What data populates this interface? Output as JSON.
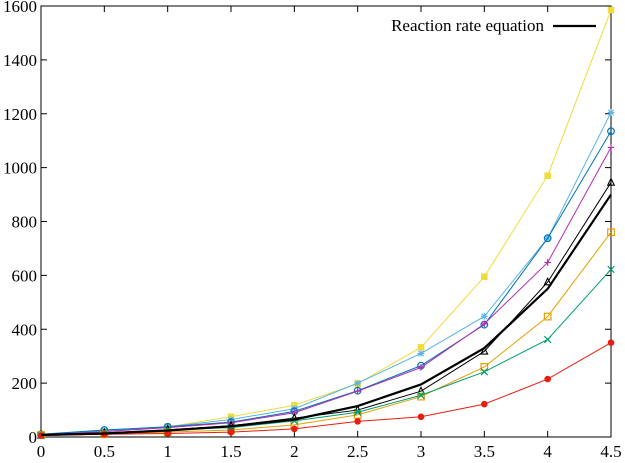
{
  "chart_data": {
    "type": "line",
    "title": "",
    "xlabel": "",
    "ylabel": "",
    "xlim": [
      0,
      4.5
    ],
    "ylim": [
      0,
      1600
    ],
    "x": [
      0,
      0.5,
      1,
      1.5,
      2,
      2.5,
      3,
      3.5,
      4,
      4.5
    ],
    "xticks": [
      0,
      0.5,
      1,
      1.5,
      2,
      2.5,
      3,
      3.5,
      4,
      4.5
    ],
    "xtick_labels": [
      "0",
      "0.5",
      "1",
      "1.5",
      "2",
      "2.5",
      "3",
      "3.5",
      "4",
      "4.5"
    ],
    "yticks": [
      0,
      200,
      400,
      600,
      800,
      1000,
      1200,
      1400,
      1600
    ],
    "ytick_labels": [
      "0",
      "200",
      "400",
      "600",
      "800",
      "1000",
      "1200",
      "1400",
      "1600"
    ],
    "grid": false,
    "legend_position": "top-right",
    "legend": [
      {
        "label": "Reaction rate equation",
        "color": "#000000"
      }
    ],
    "series": [
      {
        "color": "#000000",
        "marker": "none",
        "width": 2.2,
        "values": [
          8,
          13,
          24,
          40,
          65,
          115,
          195,
          330,
          550,
          900
        ]
      },
      {
        "color": "#f0dc3c",
        "marker": "square-filled",
        "values": [
          10,
          20,
          38,
          75,
          118,
          198,
          333,
          595,
          970,
          1585
        ]
      },
      {
        "color": "#56b4e9",
        "marker": "star",
        "values": [
          8,
          23,
          38,
          65,
          105,
          200,
          310,
          448,
          738,
          1205
        ]
      },
      {
        "color": "#0072b2",
        "marker": "circle",
        "values": [
          10,
          26,
          38,
          55,
          95,
          172,
          265,
          417,
          738,
          1135
        ]
      },
      {
        "color": "#b42cb4",
        "marker": "plus",
        "values": [
          8,
          20,
          35,
          53,
          90,
          170,
          258,
          420,
          648,
          1075
        ]
      },
      {
        "color": "#000000",
        "marker": "triangle",
        "values": [
          7,
          15,
          27,
          42,
          70,
          100,
          170,
          318,
          575,
          945
        ]
      },
      {
        "color": "#e69f00",
        "marker": "square",
        "values": [
          7,
          10,
          18,
          26,
          45,
          82,
          150,
          260,
          447,
          760
        ]
      },
      {
        "color": "#009e73",
        "marker": "x",
        "values": [
          5,
          12,
          27,
          35,
          60,
          92,
          155,
          242,
          362,
          622
        ]
      },
      {
        "color": "#e51e10",
        "marker": "circle-filled",
        "values": [
          5,
          10,
          13,
          18,
          30,
          58,
          75,
          122,
          215,
          350
        ]
      }
    ]
  }
}
